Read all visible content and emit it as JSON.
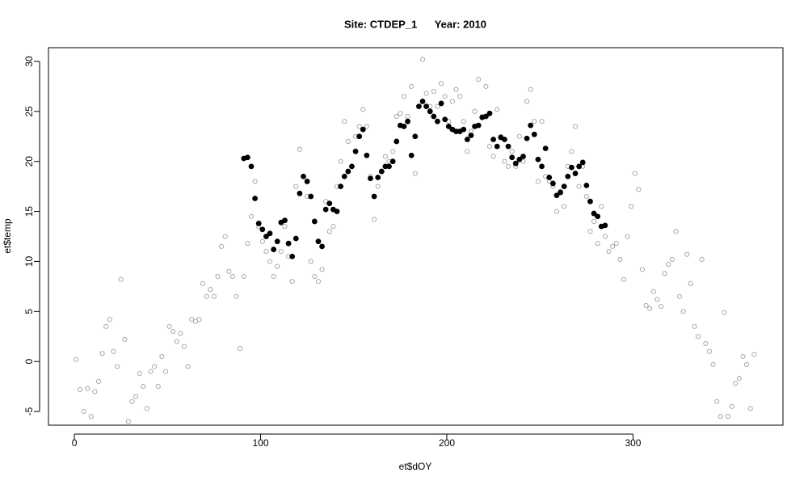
{
  "chart_data": {
    "type": "scatter",
    "title": "Site: CTDEP_1      Year: 2010",
    "x_label": "et$dOY",
    "y_label": "et$temp",
    "xlim": [
      -13.9,
      380.5
    ],
    "ylim": [
      -6.37,
      31.37
    ],
    "xticks": [
      0,
      100,
      200,
      300
    ],
    "yticks": [
      -5,
      0,
      5,
      10,
      15,
      20,
      25,
      30
    ],
    "series": [
      {
        "color": "#a0a0a0",
        "marker": "open",
        "x": [
          1,
          3,
          5,
          7,
          9,
          11,
          13,
          15,
          17,
          19,
          21,
          23,
          25,
          27,
          29,
          31,
          33,
          35,
          37,
          39,
          41,
          43,
          45,
          47,
          49,
          51,
          53,
          55,
          57,
          59,
          61,
          63,
          65,
          67,
          69,
          71,
          73,
          75,
          77,
          79,
          81,
          83,
          85,
          87,
          89,
          91,
          93,
          95,
          97,
          99,
          101,
          103,
          105,
          107,
          109,
          111,
          113,
          115,
          117,
          119,
          121,
          123,
          125,
          127,
          129,
          131,
          133,
          135,
          137,
          139,
          141,
          143,
          145,
          147,
          149,
          151,
          153,
          155,
          157,
          159,
          161,
          163,
          165,
          167,
          169,
          171,
          173,
          175,
          177,
          179,
          181,
          183,
          185,
          187,
          189,
          191,
          193,
          195,
          197,
          199,
          201,
          203,
          205,
          207,
          209,
          211,
          213,
          215,
          217,
          219,
          221,
          223,
          225,
          227,
          229,
          231,
          233,
          235,
          237,
          239,
          241,
          243,
          245,
          247,
          249,
          251,
          253,
          255,
          257,
          259,
          261,
          263,
          265,
          267,
          269,
          271,
          273,
          275,
          277,
          279,
          281,
          283,
          285,
          287,
          289,
          291,
          293,
          295,
          297,
          299,
          301,
          303,
          305,
          307,
          309,
          311,
          313,
          315,
          317,
          319,
          321,
          323,
          325,
          327,
          329,
          331,
          333,
          335,
          337,
          339,
          341,
          343,
          345,
          347,
          349,
          351,
          353,
          355,
          357,
          359,
          361,
          363,
          365
        ],
        "y": [
          0.2,
          -2.8,
          -5,
          -2.7,
          -5.5,
          -3,
          -2,
          0.8,
          3.5,
          4.2,
          1,
          -0.5,
          8.2,
          2.2,
          -6,
          -4,
          -3.5,
          -1.2,
          -2.5,
          -4.7,
          -1,
          -0.5,
          -2.5,
          0.5,
          -1,
          3.5,
          3,
          2,
          2.8,
          1.5,
          -0.5,
          4.2,
          4,
          4.2,
          7.8,
          6.5,
          7.2,
          6.5,
          8.5,
          11.5,
          12.5,
          9,
          8.5,
          6.5,
          1.3,
          8.5,
          11.8,
          14.5,
          18,
          13.5,
          12,
          11,
          10,
          8.5,
          9.5,
          11,
          13.5,
          10.5,
          8,
          17.5,
          21.2,
          18.5,
          16.5,
          10,
          8.5,
          8,
          9.2,
          16,
          13,
          13.5,
          17.5,
          20,
          24,
          22,
          19.5,
          22.5,
          23.5,
          25.2,
          23.5,
          18.5,
          14.2,
          17.5,
          19,
          20.5,
          20,
          21,
          24.5,
          24.8,
          26.5,
          24.5,
          27.5,
          18.8,
          25.5,
          30.2,
          26.8,
          25.5,
          27,
          25.5,
          27.8,
          26.5,
          24,
          26,
          27.2,
          26.5,
          24,
          21,
          23,
          25,
          28.2,
          24.5,
          27.5,
          21.5,
          20.5,
          25.2,
          22.5,
          20,
          19.5,
          21,
          19.5,
          22.5,
          20,
          26,
          27.2,
          24,
          18,
          24,
          18.5,
          18,
          17.5,
          15,
          17,
          15.5,
          19.5,
          21,
          23.5,
          17.5,
          19.5,
          16.5,
          13,
          14,
          11.8,
          15.5,
          12.5,
          11,
          11.5,
          11.8,
          10.2,
          8.2,
          12.5,
          15.5,
          18.8,
          17.2,
          9.2,
          5.6,
          5.3,
          7,
          6.2,
          5.5,
          8.8,
          9.7,
          10.2,
          13,
          6.5,
          5,
          10.7,
          7.8,
          3.5,
          2.5,
          10.2,
          1.8,
          1,
          -0.3,
          -4,
          -5.5,
          4.9,
          -5.5,
          -4.5,
          -2.2,
          -1.7,
          0.5,
          -0.3,
          -4.7,
          0.7
        ]
      },
      {
        "color": "#000000",
        "marker": "filled",
        "x": [
          91,
          93,
          95,
          97,
          99,
          101,
          103,
          105,
          107,
          109,
          111,
          113,
          115,
          117,
          119,
          121,
          123,
          125,
          127,
          129,
          131,
          133,
          135,
          137,
          139,
          141,
          143,
          145,
          147,
          149,
          151,
          153,
          155,
          157,
          159,
          161,
          163,
          165,
          167,
          169,
          171,
          173,
          175,
          177,
          179,
          181,
          183,
          185,
          187,
          189,
          191,
          193,
          195,
          197,
          199,
          201,
          203,
          205,
          207,
          209,
          211,
          213,
          215,
          217,
          219,
          221,
          223,
          225,
          227,
          229,
          231,
          233,
          235,
          237,
          239,
          241,
          243,
          245,
          247,
          249,
          251,
          253,
          255,
          257,
          259,
          261,
          263,
          265,
          267,
          269,
          271,
          273,
          275,
          277,
          279,
          281,
          283,
          285
        ],
        "y": [
          20.3,
          20.4,
          19.5,
          16.3,
          13.8,
          13.2,
          12.5,
          12.8,
          11.2,
          12,
          13.9,
          14.1,
          11.8,
          10.5,
          12.3,
          16.8,
          18.5,
          18,
          16.5,
          14,
          12,
          11.5,
          15.2,
          15.8,
          15.2,
          15,
          17.5,
          18.5,
          19,
          19.5,
          21,
          22.5,
          23.2,
          20.6,
          18.3,
          16.5,
          18.4,
          19,
          19.5,
          19.5,
          20,
          22,
          23.6,
          23.5,
          24,
          20.6,
          22.5,
          25.5,
          26,
          25.5,
          25,
          24.5,
          24,
          25.8,
          24.2,
          23.5,
          23.2,
          23,
          23,
          23.2,
          22.2,
          22.6,
          23.5,
          23.6,
          24.4,
          24.5,
          24.8,
          22.2,
          21.5,
          22.4,
          22.2,
          21.5,
          20.4,
          19.8,
          20.2,
          20.5,
          22.3,
          23.6,
          22.7,
          20.2,
          19.5,
          21.3,
          18.4,
          17.8,
          16.6,
          16.9,
          17.5,
          18.5,
          19.4,
          18.8,
          19.5,
          19.9,
          17.6,
          16,
          14.8,
          14.5,
          13.5,
          13.6
        ]
      }
    ]
  }
}
